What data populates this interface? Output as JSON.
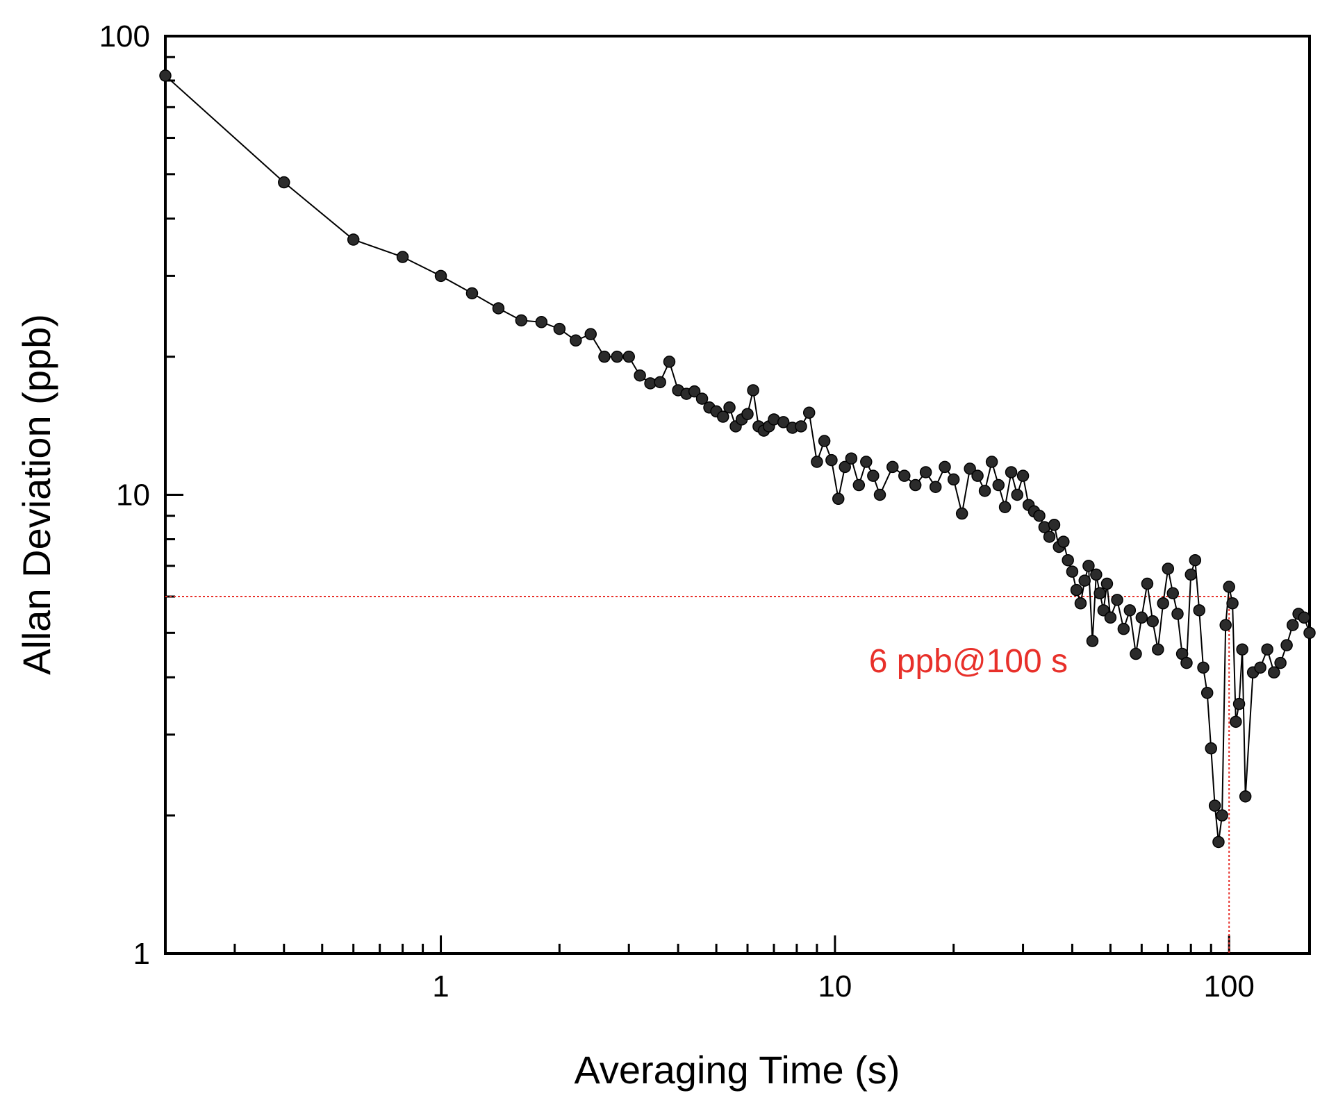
{
  "chart_data": {
    "type": "scatter",
    "title": "",
    "xlabel": "Averaging Time (s)",
    "ylabel": "Allan Deviation (ppb)",
    "xscale": "log",
    "yscale": "log",
    "xlim": [
      0.2,
      160
    ],
    "ylim": [
      1,
      100
    ],
    "grid": false,
    "x_tick_labels": [
      "1",
      "10",
      "100"
    ],
    "y_tick_labels": [
      "1",
      "10",
      "100"
    ],
    "marker_color": "#2b2b2b",
    "line_color": "#000000",
    "annotation": {
      "text": "6 ppb@100 s",
      "x": 100,
      "y": 6,
      "color": "#e8302a"
    },
    "series": [
      {
        "name": "Allan Deviation",
        "x": [
          0.2,
          0.4,
          0.6,
          0.8,
          1.0,
          1.2,
          1.4,
          1.6,
          1.8,
          2.0,
          2.2,
          2.4,
          2.6,
          2.8,
          3.0,
          3.2,
          3.4,
          3.6,
          3.8,
          4.0,
          4.2,
          4.4,
          4.6,
          4.8,
          5.0,
          5.2,
          5.4,
          5.6,
          5.8,
          6.0,
          6.2,
          6.4,
          6.6,
          6.8,
          7.0,
          7.4,
          7.8,
          8.2,
          8.6,
          9.0,
          9.4,
          9.8,
          10.2,
          10.6,
          11,
          11.5,
          12,
          12.5,
          13,
          14,
          15,
          16,
          17,
          18,
          19,
          20,
          21,
          22,
          23,
          24,
          25,
          26,
          27,
          28,
          29,
          30,
          31,
          32,
          33,
          34,
          35,
          36,
          37,
          38,
          39,
          40,
          41,
          42,
          43,
          44,
          45,
          46,
          47,
          48,
          49,
          50,
          52,
          54,
          56,
          58,
          60,
          62,
          64,
          66,
          68,
          70,
          72,
          74,
          76,
          78,
          80,
          82,
          84,
          86,
          88,
          90,
          92,
          94,
          96,
          98,
          100,
          102,
          104,
          106,
          108,
          110,
          115,
          120,
          125,
          130,
          135,
          140,
          145,
          150,
          155,
          160
        ],
        "y": [
          82,
          48,
          36,
          33,
          30,
          27.5,
          25.5,
          24,
          23.8,
          23,
          21.7,
          22.4,
          20,
          20,
          20,
          18.2,
          17.5,
          17.6,
          19.5,
          16.9,
          16.6,
          16.8,
          16.2,
          15.5,
          15.2,
          14.8,
          15.5,
          14.1,
          14.6,
          15,
          16.9,
          14.1,
          13.8,
          14.1,
          14.6,
          14.4,
          14,
          14.1,
          15.1,
          11.8,
          13.1,
          11.9,
          9.8,
          11.5,
          12,
          10.5,
          11.8,
          11,
          10,
          11.5,
          11,
          10.5,
          11.2,
          10.4,
          11.5,
          10.8,
          9.1,
          11.4,
          11,
          10.2,
          11.8,
          10.5,
          9.4,
          11.2,
          10,
          11,
          9.5,
          9.2,
          9,
          8.5,
          8.1,
          8.6,
          7.7,
          7.9,
          7.2,
          6.8,
          6.2,
          5.8,
          6.5,
          7,
          4.8,
          6.7,
          6.1,
          5.6,
          6.4,
          5.4,
          5.9,
          5.1,
          5.6,
          4.5,
          5.4,
          6.4,
          5.3,
          4.6,
          5.8,
          6.9,
          6.1,
          5.5,
          4.5,
          4.3,
          6.7,
          7.2,
          5.6,
          4.2,
          3.7,
          2.8,
          2.1,
          1.75,
          2,
          5.2,
          6.3,
          5.8,
          3.2,
          3.5,
          4.6,
          2.2,
          4.1,
          4.2,
          4.6,
          4.1,
          4.3,
          4.7,
          5.2,
          5.5,
          5.4,
          5.0
        ]
      }
    ]
  }
}
